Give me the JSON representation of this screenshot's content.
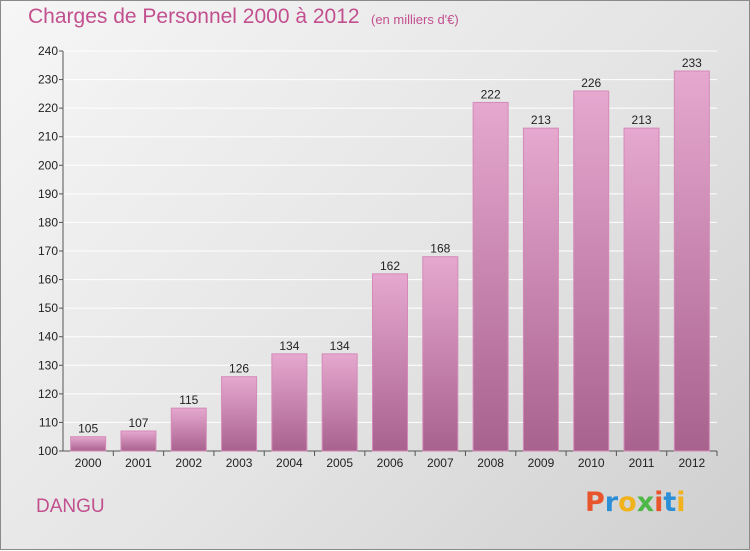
{
  "header": {
    "title": "Charges de Personnel 2000 à 2012",
    "unit": "(en milliers d'€)"
  },
  "footer": {
    "commune": "DANGU",
    "logo": "Proxiti"
  },
  "colors": {
    "title": "#c2508f",
    "bar_top": "#e6a8cf",
    "bar_bottom": "#a8628e",
    "bar_border": "#d48ab8",
    "logo": [
      "#e8542c",
      "#2b8fd8",
      "#f2b21c",
      "#4db848",
      "#e8542c",
      "#2b8fd8",
      "#f2b21c"
    ]
  },
  "chart_data": {
    "type": "bar",
    "title": "Charges de Personnel 2000 à 2012",
    "subtitle": "(en milliers d'€)",
    "categories": [
      "2000",
      "2001",
      "2002",
      "2003",
      "2004",
      "2005",
      "2006",
      "2007",
      "2008",
      "2009",
      "2010",
      "2011",
      "2012"
    ],
    "values": [
      105,
      107,
      115,
      126,
      134,
      134,
      162,
      168,
      222,
      213,
      226,
      213,
      233
    ],
    "ylim": [
      100,
      240
    ],
    "yticks": [
      100,
      110,
      120,
      130,
      140,
      150,
      160,
      170,
      180,
      190,
      200,
      210,
      220,
      230,
      240
    ],
    "grid": true,
    "legend": "none"
  }
}
